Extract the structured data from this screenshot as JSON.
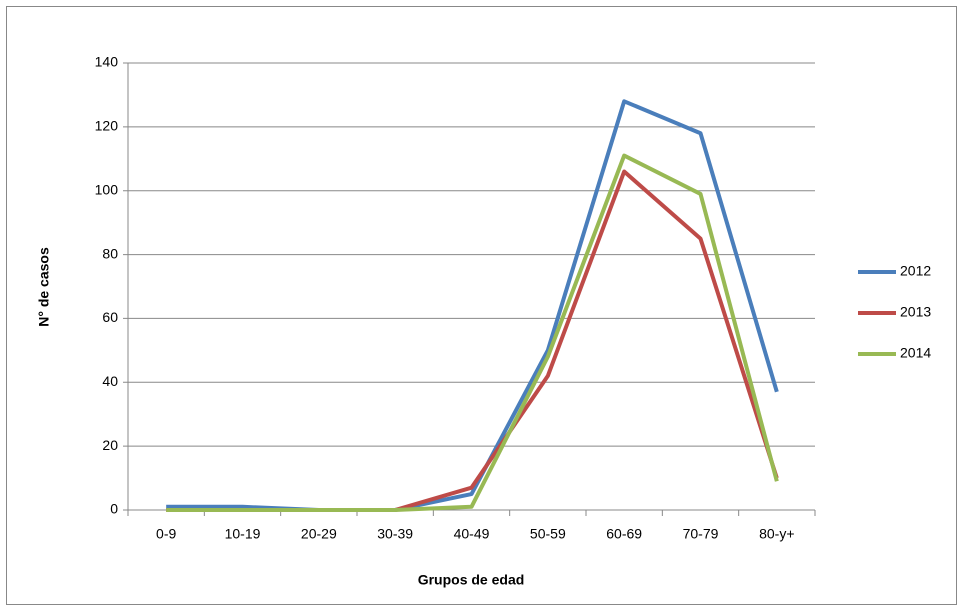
{
  "chart_data": {
    "type": "line",
    "x_label": "Grupos de edad",
    "y_label": "N° de casos",
    "categories": [
      "0-9",
      "10-19",
      "20-29",
      "30-39",
      "40-49",
      "50-59",
      "60-69",
      "70-79",
      "80-y+"
    ],
    "series": [
      {
        "name": "2012",
        "color": "#4a7ebb",
        "values": [
          1,
          1,
          0,
          0,
          5,
          50,
          128,
          118,
          37
        ]
      },
      {
        "name": "2013",
        "color": "#be4b48",
        "values": [
          0,
          0,
          0,
          0,
          7,
          42,
          106,
          85,
          10
        ]
      },
      {
        "name": "2014",
        "color": "#98b954",
        "values": [
          0,
          0,
          0,
          0,
          1,
          48,
          111,
          99,
          9
        ]
      }
    ],
    "ylim": [
      0,
      140
    ],
    "yticks": [
      0,
      20,
      40,
      60,
      80,
      100,
      120,
      140
    ],
    "grid": true,
    "legend": "right"
  }
}
